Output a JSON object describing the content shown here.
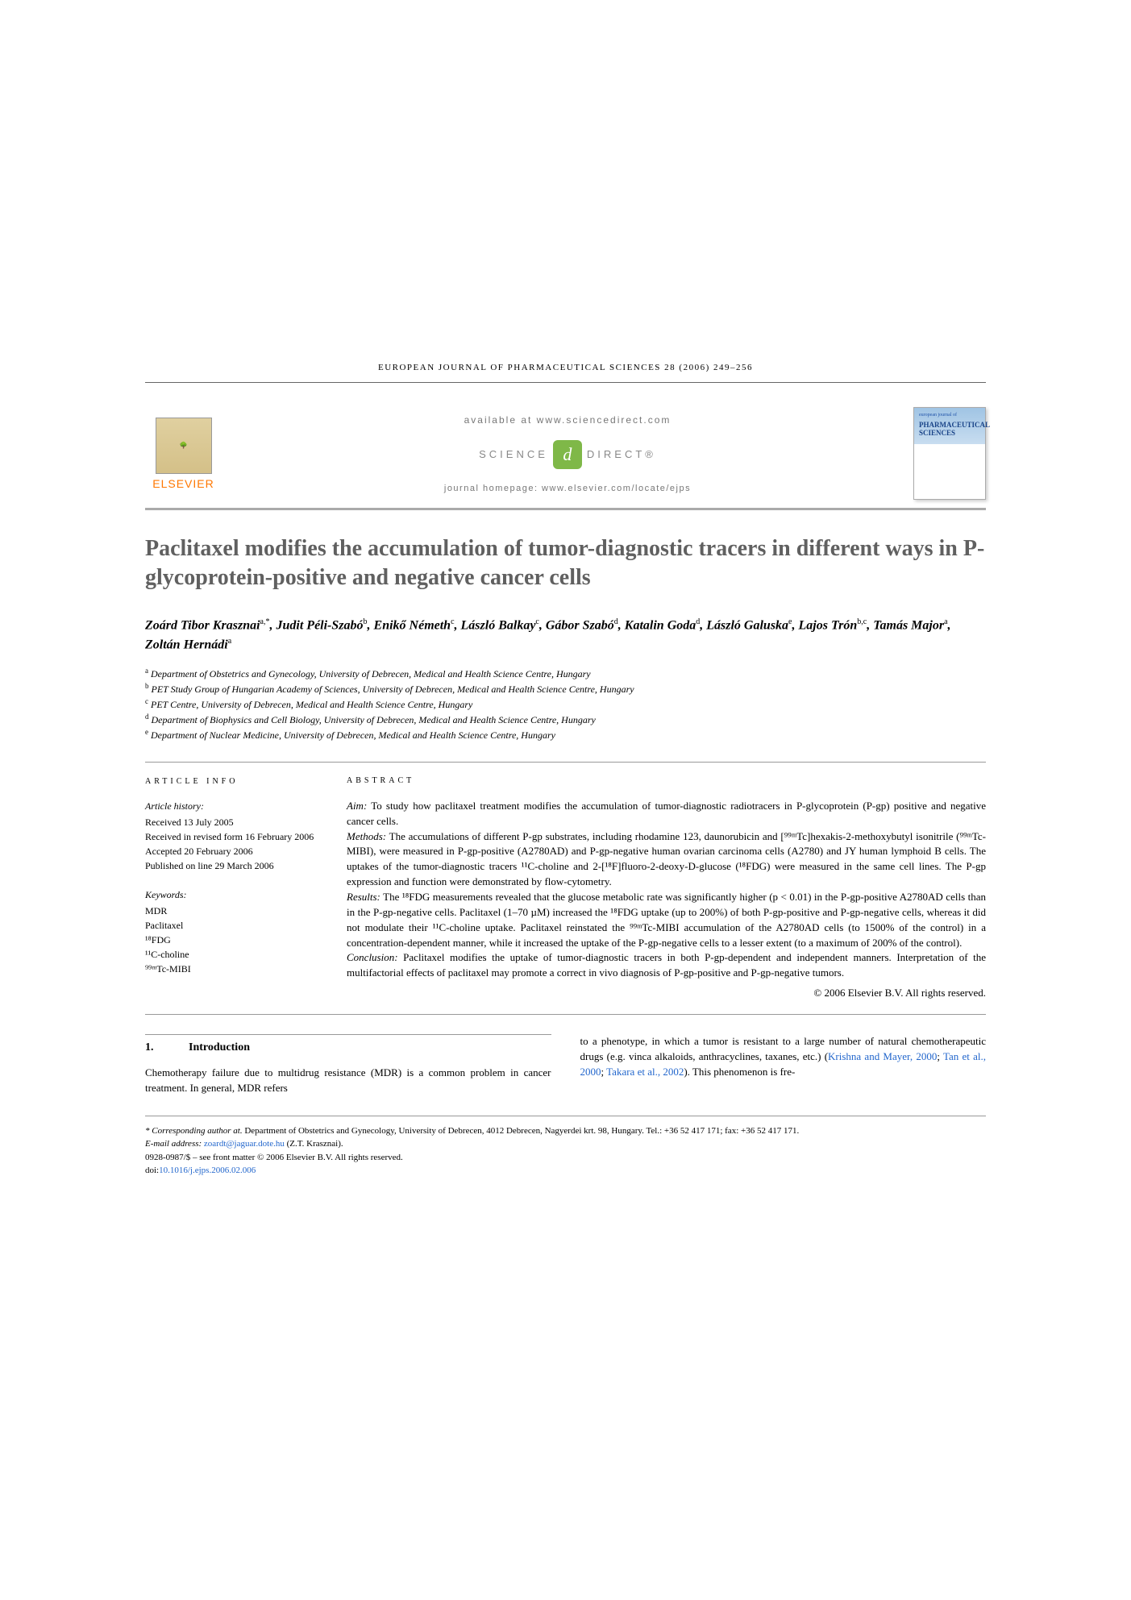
{
  "running_header": "EUROPEAN JOURNAL OF PHARMACEUTICAL SCIENCES 28 (2006) 249–256",
  "header": {
    "elsevier": "ELSEVIER",
    "available": "available at www.sciencedirect.com",
    "sd_left": "SCIENCE",
    "sd_right": "DIRECT®",
    "homepage": "journal homepage: www.elsevier.com/locate/ejps",
    "cover_title": "PHARMACEUTICAL SCIENCES"
  },
  "title": "Paclitaxel modifies the accumulation of tumor-diagnostic tracers in different ways in P-glycoprotein-positive and negative cancer cells",
  "authors_html": "Zoárd Tibor Krasznai<sup>a,*</sup>, Judit Péli-Szabó<sup>b</sup>, Enikő Németh<sup>c</sup>, László Balkay<sup>c</sup>, Gábor Szabó<sup>d</sup>, Katalin Goda<sup>d</sup>, László Galuska<sup>e</sup>, Lajos Trón<sup>b,c</sup>, Tamás Major<sup>a</sup>, Zoltán Hernádi<sup>a</sup>",
  "affiliations": [
    {
      "sup": "a",
      "text": "Department of Obstetrics and Gynecology, University of Debrecen, Medical and Health Science Centre, Hungary"
    },
    {
      "sup": "b",
      "text": "PET Study Group of Hungarian Academy of Sciences, University of Debrecen, Medical and Health Science Centre, Hungary"
    },
    {
      "sup": "c",
      "text": "PET Centre, University of Debrecen, Medical and Health Science Centre, Hungary"
    },
    {
      "sup": "d",
      "text": "Department of Biophysics and Cell Biology, University of Debrecen, Medical and Health Science Centre, Hungary"
    },
    {
      "sup": "e",
      "text": "Department of Nuclear Medicine, University of Debrecen, Medical and Health Science Centre, Hungary"
    }
  ],
  "info": {
    "heading": "ARTICLE INFO",
    "history_label": "Article history:",
    "history": [
      "Received 13 July 2005",
      "Received in revised form 16 February 2006",
      "Accepted 20 February 2006",
      "Published on line 29 March 2006"
    ],
    "keywords_label": "Keywords:",
    "keywords": [
      "MDR",
      "Paclitaxel",
      "¹⁸FDG",
      "¹¹C-choline",
      "⁹⁹ᵐTc-MIBI"
    ]
  },
  "abstract": {
    "heading": "ABSTRACT",
    "aim_label": "Aim:",
    "aim": "To study how paclitaxel treatment modifies the accumulation of tumor-diagnostic radiotracers in P-glycoprotein (P-gp) positive and negative cancer cells.",
    "methods_label": "Methods:",
    "methods": "The accumulations of different P-gp substrates, including rhodamine 123, daunorubicin and [⁹⁹ᵐTc]hexakis-2-methoxybutyl isonitrile (⁹⁹ᵐTc-MIBI), were measured in P-gp-positive (A2780AD) and P-gp-negative human ovarian carcinoma cells (A2780) and JY human lymphoid B cells. The uptakes of the tumor-diagnostic tracers ¹¹C-choline and 2-[¹⁸F]fluoro-2-deoxy-D-glucose (¹⁸FDG) were measured in the same cell lines. The P-gp expression and function were demonstrated by flow-cytometry.",
    "results_label": "Results:",
    "results": "The ¹⁸FDG measurements revealed that the glucose metabolic rate was significantly higher (p < 0.01) in the P-gp-positive A2780AD cells than in the P-gp-negative cells. Paclitaxel (1–70 µM) increased the ¹⁸FDG uptake (up to 200%) of both P-gp-positive and P-gp-negative cells, whereas it did not modulate their ¹¹C-choline uptake. Paclitaxel reinstated the ⁹⁹ᵐTc-MIBI accumulation of the A2780AD cells (to 1500% of the control) in a concentration-dependent manner, while it increased the uptake of the P-gp-negative cells to a lesser extent (to a maximum of 200% of the control).",
    "conclusion_label": "Conclusion:",
    "conclusion": "Paclitaxel modifies the uptake of tumor-diagnostic tracers in both P-gp-dependent and independent manners. Interpretation of the multifactorial effects of paclitaxel may promote a correct in vivo diagnosis of P-gp-positive and P-gp-negative tumors.",
    "copyright": "© 2006 Elsevier B.V. All rights reserved."
  },
  "body": {
    "section_num": "1.",
    "section_title": "Introduction",
    "col1": "Chemotherapy failure due to multidrug resistance (MDR) is a common problem in cancer treatment. In general, MDR refers",
    "col2_a": "to a phenotype, in which a tumor is resistant to a large number of natural chemotherapeutic drugs (e.g. vinca alkaloids, anthracyclines, taxanes, etc.) (",
    "cite1": "Krishna and Mayer, 2000",
    "col2_b": "; ",
    "cite2": "Tan et al., 2000",
    "col2_c": "; ",
    "cite3": "Takara et al., 2002",
    "col2_d": "). This phenomenon is fre-"
  },
  "footer": {
    "corr_label": "* Corresponding author at.",
    "corr_text": "Department of Obstetrics and Gynecology, University of Debrecen, 4012 Debrecen, Nagyerdei krt. 98, Hungary. Tel.: +36 52 417 171; fax: +36 52 417 171.",
    "email_label": "E-mail address:",
    "email": "zoardt@jaguar.dote.hu",
    "email_name": "(Z.T. Krasznai).",
    "issn": "0928-0987/$ – see front matter © 2006 Elsevier B.V. All rights reserved.",
    "doi_label": "doi:",
    "doi": "10.1016/j.ejps.2006.02.006"
  },
  "colors": {
    "title_gray": "#606060",
    "cite_blue": "#2266cc",
    "elsevier_orange": "#ff7700",
    "sd_green": "#7fb848",
    "rule_gray": "#999999"
  }
}
